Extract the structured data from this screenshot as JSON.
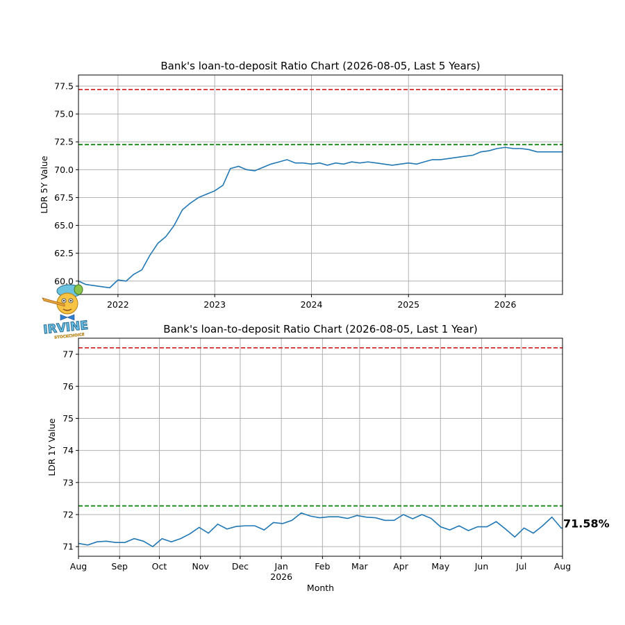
{
  "colors": {
    "series": "#1f77b4",
    "upper_ref": "#d62728",
    "lower_ref": "#008000",
    "grid": "#b0b0b0"
  },
  "logo": {
    "text": "IRVINE",
    "subtext": "STOCKCHOICE"
  },
  "chart_data": [
    {
      "type": "line",
      "title": "Bank's loan-to-deposit Ratio Chart (2026-08-05, Last 5 Years)",
      "xlabel": "",
      "ylabel": "LDR 5Y Value",
      "xlim": [
        "2021-08-05",
        "2026-08-05"
      ],
      "ylim": [
        58.8,
        78.5
      ],
      "yticks": [
        60.0,
        62.5,
        65.0,
        67.5,
        70.0,
        72.5,
        75.0,
        77.5
      ],
      "ytick_labels": [
        "60.0",
        "62.5",
        "65.0",
        "67.5",
        "70.0",
        "72.5",
        "75.0",
        "77.5"
      ],
      "xticks": [
        "2022-01-01",
        "2023-01-01",
        "2024-01-01",
        "2025-01-01",
        "2026-01-01"
      ],
      "xtick_labels": [
        "2022",
        "2023",
        "2024",
        "2025",
        "2026"
      ],
      "grid": true,
      "reference_lines": [
        {
          "value": 77.2,
          "color": "#d62728",
          "style": "dashed"
        },
        {
          "value": 72.25,
          "color": "#008000",
          "style": "dashed"
        }
      ],
      "series": [
        {
          "x": [
            "2021-08-05",
            "2021-09-01",
            "2021-10-01",
            "2021-11-01",
            "2021-12-01",
            "2022-01-01",
            "2022-02-01",
            "2022-03-01",
            "2022-04-01",
            "2022-05-01",
            "2022-06-01",
            "2022-07-01",
            "2022-08-01",
            "2022-09-01",
            "2022-10-01",
            "2022-11-01",
            "2022-12-01",
            "2023-01-01",
            "2023-02-01",
            "2023-03-01",
            "2023-04-01",
            "2023-05-01",
            "2023-06-01",
            "2023-07-01",
            "2023-08-01",
            "2023-09-01",
            "2023-10-01",
            "2023-11-01",
            "2023-12-01",
            "2024-01-01",
            "2024-02-01",
            "2024-03-01",
            "2024-04-01",
            "2024-05-01",
            "2024-06-01",
            "2024-07-01",
            "2024-08-01",
            "2024-09-01",
            "2024-10-01",
            "2024-11-01",
            "2024-12-01",
            "2025-01-01",
            "2025-02-01",
            "2025-03-01",
            "2025-04-01",
            "2025-05-01",
            "2025-06-01",
            "2025-07-01",
            "2025-08-01",
            "2025-09-01",
            "2025-10-01",
            "2025-11-01",
            "2025-12-01",
            "2026-01-01",
            "2026-02-01",
            "2026-03-01",
            "2026-04-01",
            "2026-05-01",
            "2026-06-01",
            "2026-07-01",
            "2026-08-05"
          ],
          "y": [
            60.0,
            59.7,
            59.6,
            59.5,
            59.4,
            60.1,
            60.0,
            60.6,
            61.0,
            62.3,
            63.4,
            64.0,
            65.0,
            66.4,
            67.0,
            67.5,
            67.8,
            68.1,
            68.6,
            70.1,
            70.3,
            70.0,
            69.9,
            70.2,
            70.5,
            70.7,
            70.9,
            70.6,
            70.6,
            70.5,
            70.6,
            70.4,
            70.6,
            70.5,
            70.7,
            70.6,
            70.7,
            70.6,
            70.5,
            70.4,
            70.5,
            70.6,
            70.5,
            70.7,
            70.9,
            70.9,
            71.0,
            71.1,
            71.2,
            71.3,
            71.6,
            71.7,
            71.9,
            72.0,
            71.9,
            71.9,
            71.8,
            71.6,
            71.6,
            71.6,
            71.6
          ]
        }
      ]
    },
    {
      "type": "line",
      "title": "Bank's loan-to-deposit Ratio Chart (2026-08-05, Last 1 Year)",
      "xlabel": "Month",
      "ylabel": "LDR 1Y Value",
      "xlim": [
        "2025-08-01",
        "2026-08-01"
      ],
      "ylim": [
        70.7,
        77.5
      ],
      "yticks": [
        71,
        72,
        73,
        74,
        75,
        76,
        77
      ],
      "ytick_labels": [
        "71",
        "72",
        "73",
        "74",
        "75",
        "76",
        "77"
      ],
      "xticks": [
        "2025-08-01",
        "2025-09-01",
        "2025-10-01",
        "2025-11-01",
        "2025-12-01",
        "2026-01-01",
        "2026-02-01",
        "2026-03-01",
        "2026-04-01",
        "2026-05-01",
        "2026-06-01",
        "2026-07-01",
        "2026-08-01"
      ],
      "xtick_labels": [
        "Aug",
        "Sep",
        "Oct",
        "Nov",
        "Dec",
        "Jan",
        "Feb",
        "Mar",
        "Apr",
        "May",
        "Jun",
        "Jul",
        "Aug"
      ],
      "xtick_sublabel": "2026",
      "grid": true,
      "reference_lines": [
        {
          "value": 77.2,
          "color": "#d62728",
          "style": "dashed"
        },
        {
          "value": 72.27,
          "color": "#008000",
          "style": "dashed"
        }
      ],
      "last_value_label": "71.58%",
      "series": [
        {
          "x": [
            "2025-08-01",
            "2025-08-08",
            "2025-08-15",
            "2025-08-22",
            "2025-08-29",
            "2025-09-05",
            "2025-09-12",
            "2025-09-19",
            "2025-09-26",
            "2025-10-03",
            "2025-10-10",
            "2025-10-17",
            "2025-10-24",
            "2025-10-31",
            "2025-11-07",
            "2025-11-14",
            "2025-11-21",
            "2025-11-28",
            "2025-12-05",
            "2025-12-12",
            "2025-12-19",
            "2025-12-26",
            "2026-01-02",
            "2026-01-09",
            "2026-01-16",
            "2026-01-23",
            "2026-01-30",
            "2026-02-06",
            "2026-02-13",
            "2026-02-20",
            "2026-02-27",
            "2026-03-06",
            "2026-03-13",
            "2026-03-20",
            "2026-03-27",
            "2026-04-03",
            "2026-04-10",
            "2026-04-17",
            "2026-04-24",
            "2026-05-01",
            "2026-05-08",
            "2026-05-15",
            "2026-05-22",
            "2026-05-29",
            "2026-06-05",
            "2026-06-12",
            "2026-06-19",
            "2026-06-26",
            "2026-07-03",
            "2026-07-10",
            "2026-07-17",
            "2026-07-24",
            "2026-07-31",
            "2026-08-01"
          ],
          "y": [
            71.1,
            71.05,
            71.15,
            71.17,
            71.13,
            71.13,
            71.25,
            71.17,
            71.0,
            71.25,
            71.15,
            71.25,
            71.4,
            71.6,
            71.42,
            71.7,
            71.55,
            71.63,
            71.65,
            71.65,
            71.52,
            71.75,
            71.72,
            71.82,
            72.05,
            71.95,
            71.9,
            71.93,
            71.93,
            71.88,
            71.97,
            71.92,
            71.9,
            71.82,
            71.82,
            72.0,
            71.87,
            72.0,
            71.88,
            71.62,
            71.52,
            71.65,
            71.5,
            71.62,
            71.62,
            71.78,
            71.55,
            71.3,
            71.58,
            71.42,
            71.65,
            71.92,
            71.58,
            71.58
          ]
        }
      ]
    }
  ]
}
